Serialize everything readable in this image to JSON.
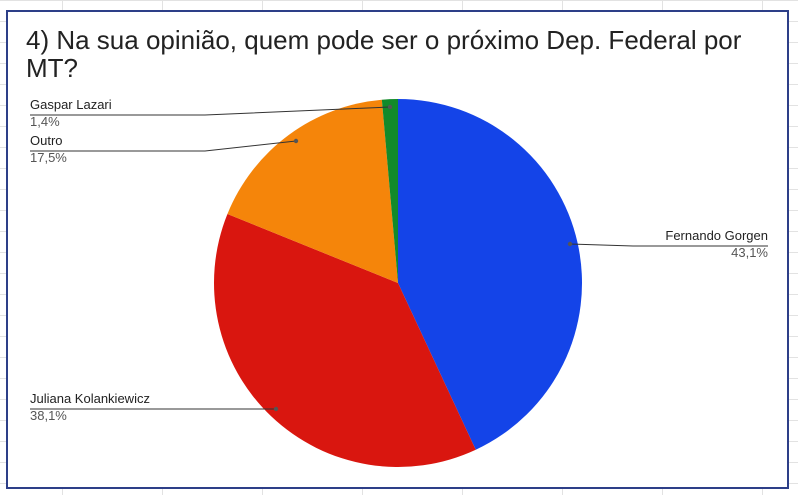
{
  "chart_data": {
    "type": "pie",
    "title": "4) Na sua opinião, quem pode ser o próximo Dep. Federal por MT?",
    "slices": [
      {
        "label": "Fernando Gorgen",
        "value": 43.1,
        "pct_label": "43,1%",
        "color": "#1444e8"
      },
      {
        "label": "Juliana Kolankiewicz",
        "value": 38.1,
        "pct_label": "38,1%",
        "color": "#d9160f"
      },
      {
        "label": "Outro",
        "value": 17.5,
        "pct_label": "17,5%",
        "color": "#f5850a"
      },
      {
        "label": "Gaspar Lazari",
        "value": 1.4,
        "pct_label": "1,4%",
        "color": "#128a2a"
      }
    ],
    "legend": "none",
    "label_placement": "outside-with-leader-lines"
  }
}
